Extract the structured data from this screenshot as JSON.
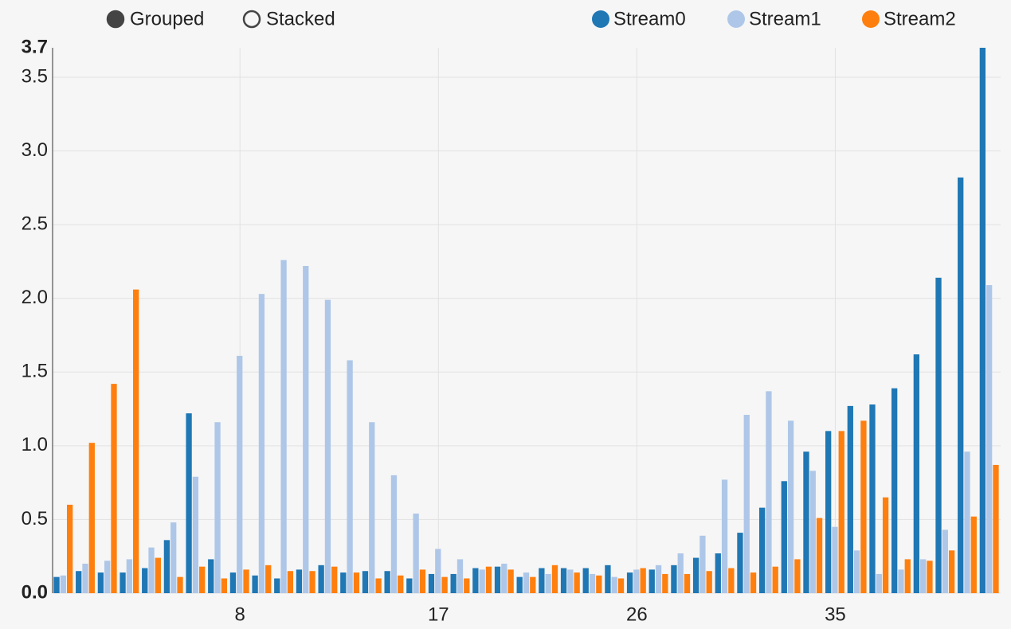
{
  "chart_data": {
    "type": "bar",
    "controls": [
      "Grouped",
      "Stacked"
    ],
    "stacked": false,
    "x": [
      0,
      1,
      2,
      3,
      4,
      5,
      6,
      7,
      8,
      9,
      10,
      11,
      12,
      13,
      14,
      15,
      16,
      17,
      18,
      19,
      20,
      21,
      22,
      23,
      24,
      25,
      26,
      27,
      28,
      29,
      30,
      31,
      32,
      33,
      34,
      35,
      36,
      37,
      38,
      39,
      40,
      41,
      42
    ],
    "xlim": [
      -0.5,
      42.5
    ],
    "xticks": [
      8,
      17,
      26,
      35
    ],
    "ylim": [
      0,
      3.7
    ],
    "yticks": [
      {
        "value": 0,
        "label": "0.0"
      },
      0.5,
      {
        "value": 1,
        "label": "1.0"
      },
      1.5,
      {
        "value": 2,
        "label": "2.0"
      },
      2.5,
      {
        "value": 3,
        "label": "3.0"
      },
      3.5,
      3.7
    ],
    "grid": true,
    "legend": "top-right",
    "series": [
      {
        "name": "Stream0",
        "color": "#1f77b4",
        "values": [
          0.11,
          0.15,
          0.14,
          0.14,
          0.17,
          0.36,
          1.22,
          0.23,
          0.14,
          0.12,
          0.1,
          0.16,
          0.19,
          0.14,
          0.15,
          0.15,
          0.1,
          0.13,
          0.13,
          0.17,
          0.18,
          0.11,
          0.17,
          0.17,
          0.17,
          0.19,
          0.14,
          0.16,
          0.19,
          0.24,
          0.27,
          0.41,
          0.58,
          0.76,
          0.96,
          1.1,
          1.27,
          1.28,
          1.39,
          1.62,
          2.14,
          2.82,
          3.7
        ]
      },
      {
        "name": "Stream1",
        "color": "#aec7e8",
        "values": [
          0.12,
          0.2,
          0.22,
          0.23,
          0.31,
          0.48,
          0.79,
          1.16,
          1.61,
          2.03,
          2.26,
          2.22,
          1.99,
          1.58,
          1.16,
          0.8,
          0.54,
          0.3,
          0.23,
          0.16,
          0.2,
          0.14,
          0.13,
          0.16,
          0.13,
          0.11,
          0.16,
          0.19,
          0.27,
          0.39,
          0.77,
          1.21,
          1.37,
          1.17,
          0.83,
          0.45,
          0.29,
          0.13,
          0.16,
          0.23,
          0.43,
          0.96,
          2.09
        ]
      },
      {
        "name": "Stream2",
        "color": "#ff7f0e",
        "values": [
          0.6,
          1.02,
          1.42,
          2.06,
          0.24,
          0.11,
          0.18,
          0.1,
          0.16,
          0.19,
          0.15,
          0.15,
          0.18,
          0.14,
          0.1,
          0.12,
          0.16,
          0.11,
          0.1,
          0.18,
          0.16,
          0.11,
          0.19,
          0.14,
          0.12,
          0.1,
          0.17,
          0.13,
          0.13,
          0.15,
          0.17,
          0.14,
          0.18,
          0.23,
          0.51,
          1.1,
          1.17,
          0.65,
          0.23,
          0.22,
          0.29,
          0.52,
          0.87
        ]
      }
    ]
  }
}
